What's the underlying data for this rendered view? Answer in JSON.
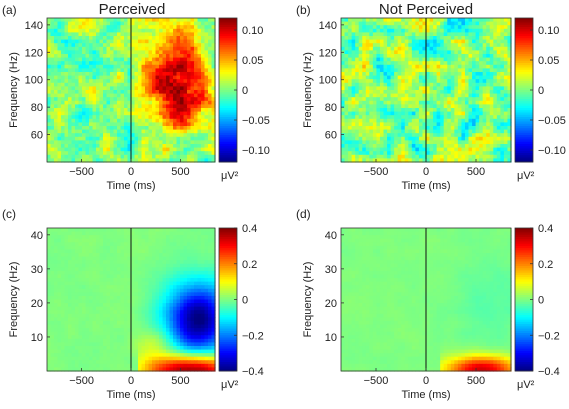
{
  "figure": {
    "panels": [
      {
        "label": "(a)",
        "title": "Perceived"
      },
      {
        "label": "(b)",
        "title": "Not Perceived"
      },
      {
        "label": "(c)",
        "title": ""
      },
      {
        "label": "(d)",
        "title": ""
      }
    ]
  },
  "chart_data": [
    {
      "type": "heatmap",
      "panel": "(a)",
      "title": "Perceived",
      "xlabel": "Time (ms)",
      "ylabel": "Frequency (Hz)",
      "xlim": [
        -850,
        850
      ],
      "ylim": [
        40,
        145
      ],
      "xticks": [
        -500,
        0,
        500
      ],
      "yticks": [
        60,
        80,
        100,
        120,
        140
      ],
      "event_line_x": 0,
      "colorbar": {
        "min": -0.12,
        "max": 0.12,
        "ticks": [
          0.1,
          0.05,
          0,
          -0.05,
          -0.1
        ],
        "tick_labels": [
          "0.10",
          "0.05",
          "0",
          "−0.05",
          "−0.10"
        ],
        "unit": "μV²",
        "colormap": "jet"
      },
      "features": [
        {
          "kind": "positive blob",
          "time_ms": [
            0,
            850
          ],
          "freq_hz": [
            60,
            140
          ],
          "peak_value": 0.11,
          "center_time_ms": 450,
          "center_freq_hz": 95
        }
      ]
    },
    {
      "type": "heatmap",
      "panel": "(b)",
      "title": "Not Perceived",
      "xlabel": "Time (ms)",
      "ylabel": "Frequency (Hz)",
      "xlim": [
        -850,
        850
      ],
      "ylim": [
        40,
        145
      ],
      "xticks": [
        -500,
        0,
        500
      ],
      "yticks": [
        60,
        80,
        100,
        120,
        140
      ],
      "event_line_x": 0,
      "colorbar": {
        "min": -0.12,
        "max": 0.12,
        "ticks": [
          0.1,
          0.05,
          0,
          -0.05,
          -0.1
        ],
        "tick_labels": [
          "0.10",
          "0.05",
          "0",
          "−0.05",
          "−0.10"
        ],
        "unit": "μV²",
        "colormap": "jet"
      },
      "features": []
    },
    {
      "type": "heatmap",
      "panel": "(c)",
      "title": "",
      "xlabel": "Time (ms)",
      "ylabel": "Frequency (Hz)",
      "xlim": [
        -850,
        850
      ],
      "ylim": [
        0,
        42
      ],
      "xticks": [
        -500,
        0,
        500
      ],
      "yticks": [
        10,
        20,
        30,
        40
      ],
      "event_line_x": 0,
      "colorbar": {
        "min": -0.4,
        "max": 0.4,
        "ticks": [
          0.4,
          0.2,
          0,
          -0.2,
          -0.4
        ],
        "tick_labels": [
          "0.4",
          "0.2",
          "0",
          "−0.2",
          "−0.4"
        ],
        "unit": "μV²",
        "colormap": "jet"
      },
      "features": [
        {
          "kind": "negative blob",
          "center_time_ms": 650,
          "center_freq_hz": 15,
          "peak_value": -0.38
        },
        {
          "kind": "positive band",
          "time_ms": [
            100,
            850
          ],
          "freq_hz": [
            0,
            6
          ],
          "peak_value": 0.38
        }
      ]
    },
    {
      "type": "heatmap",
      "panel": "(d)",
      "title": "",
      "xlabel": "Time (ms)",
      "ylabel": "Frequency (Hz)",
      "xlim": [
        -850,
        850
      ],
      "ylim": [
        0,
        42
      ],
      "xticks": [
        -500,
        0,
        500
      ],
      "yticks": [
        10,
        20,
        30,
        40
      ],
      "event_line_x": 0,
      "colorbar": {
        "min": -0.4,
        "max": 0.4,
        "ticks": [
          0.4,
          0.2,
          0,
          -0.2,
          -0.4
        ],
        "tick_labels": [
          "0.4",
          "0.2",
          "0",
          "−0.2",
          "−0.4"
        ],
        "unit": "μV²",
        "colormap": "jet"
      },
      "features": [
        {
          "kind": "positive band",
          "time_ms": [
            200,
            850
          ],
          "freq_hz": [
            0,
            5
          ],
          "peak_value": 0.32
        }
      ]
    }
  ]
}
